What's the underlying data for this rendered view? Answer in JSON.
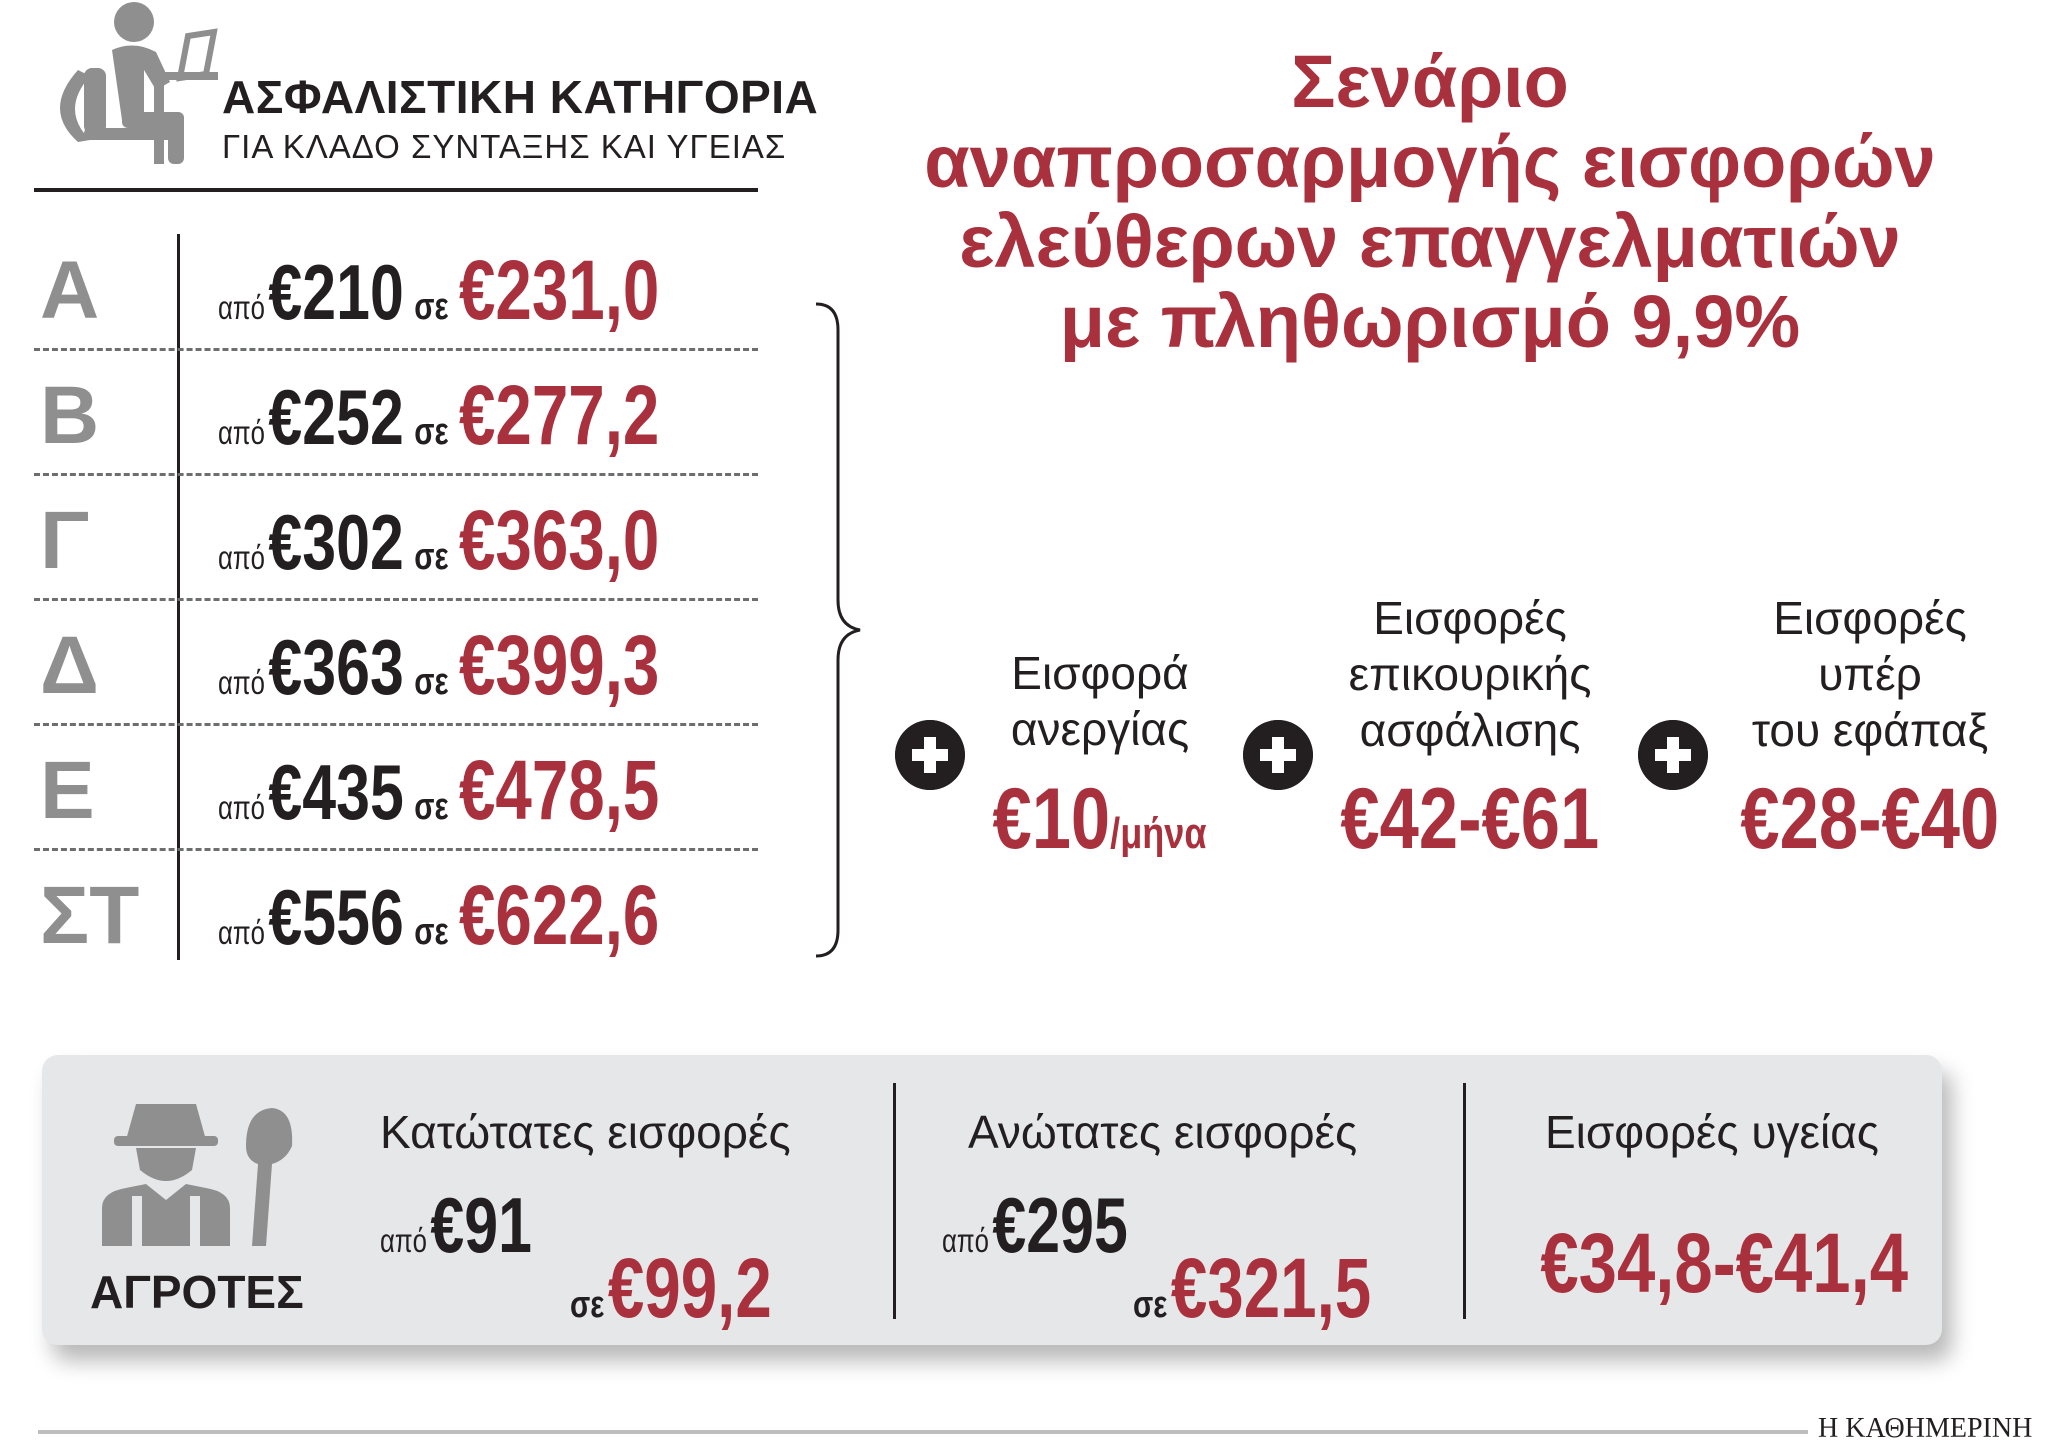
{
  "header": {
    "title": "ΑΣΦΑΛΙΣΤΙΚΗ ΚΑΤΗΓΟΡΙΑ",
    "subtitle": "ΓΙΑ ΚΛΑΔΟ ΣΥΝΤΑΞΗΣ ΚΑΙ ΥΓΕΙΑΣ"
  },
  "categories": [
    {
      "label": "Α",
      "from_word": "από",
      "from": "€210",
      "to_word": "σε",
      "to": "€231,0"
    },
    {
      "label": "Β",
      "from_word": "από",
      "from": "€252",
      "to_word": "σε",
      "to": "€277,2"
    },
    {
      "label": "Γ",
      "from_word": "από",
      "from": "€302",
      "to_word": "σε",
      "to": "€363,0"
    },
    {
      "label": "Δ",
      "from_word": "από",
      "from": "€363",
      "to_word": "σε",
      "to": "€399,3"
    },
    {
      "label": "Ε",
      "from_word": "από",
      "from": "€435",
      "to_word": "σε",
      "to": "€478,5"
    },
    {
      "label": "ΣΤ",
      "from_word": "από",
      "from": "€556",
      "to_word": "σε",
      "to": "€622,6"
    }
  ],
  "scenario": {
    "line1": "Σενάριο",
    "line2": "αναπροσαρμογής εισφορών",
    "line3": "ελεύθερων επαγγελματιών",
    "line4": "με πληθωρισμό 9,9%"
  },
  "contributions": [
    {
      "label_lines": [
        "Εισφορά",
        "ανεργίας"
      ],
      "value": "€10",
      "unit": "/μήνα"
    },
    {
      "label_lines": [
        "Εισφορές",
        "επικουρικής",
        "ασφάλισης"
      ],
      "value": "€42-€61",
      "unit": ""
    },
    {
      "label_lines": [
        "Εισφορές",
        "υπέρ",
        "του εφάπαξ"
      ],
      "value": "€28-€40",
      "unit": ""
    }
  ],
  "farmers": {
    "label": "ΑΓΡΟΤΕΣ",
    "min": {
      "title": "Κατώτατες εισφορές",
      "from_word": "από",
      "from": "€91",
      "to_word": "σε",
      "to": "€99,2"
    },
    "max": {
      "title": "Ανώτατες εισφορές",
      "from_word": "από",
      "from": "€295",
      "to_word": "σε",
      "to": "€321,5"
    },
    "health": {
      "title": "Εισφορές υγείας",
      "value": "€34,8-€41,4"
    }
  },
  "footer": {
    "logo": "Η ΚΑΘΗΜΕΡΙΝΗ"
  },
  "colors": {
    "accent": "#a8313d",
    "dark": "#231f20",
    "gray": "#8f8f8f",
    "panel": "#e6e7e8"
  },
  "icons": {
    "header": "person-at-laptop-icon",
    "farmer": "farmer-with-shovel-icon",
    "plus": "plus-circle-icon"
  }
}
